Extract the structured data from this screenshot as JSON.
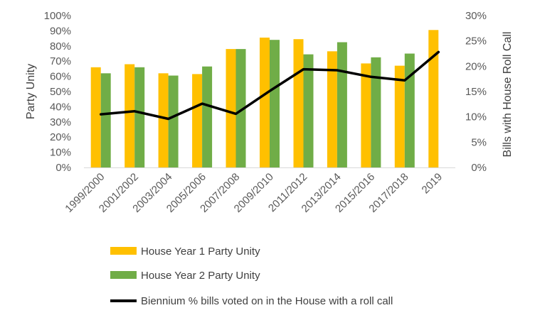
{
  "chart_data": {
    "type": "bar",
    "categories": [
      "1999/2000",
      "2001/2002",
      "2003/2004",
      "2005/2006",
      "2007/2008",
      "2009/2010",
      "2011/2012",
      "2013/2014",
      "2015/2016",
      "2017/2018",
      "2019"
    ],
    "series": [
      {
        "name": "House Year 1 Party Unity",
        "type": "bar",
        "axis": "left",
        "color": "#FFC000",
        "values": [
          66,
          68,
          62,
          61.5,
          78,
          85.5,
          84.5,
          76.5,
          68.5,
          67,
          90.5
        ]
      },
      {
        "name": "House Year 2 Party Unity",
        "type": "bar",
        "axis": "left",
        "color": "#70AD47",
        "values": [
          62,
          66,
          60.5,
          66.5,
          78,
          84,
          74.5,
          82.5,
          72.5,
          75,
          null
        ]
      },
      {
        "name": "Biennium % bills voted on in the House with a roll call",
        "type": "line",
        "axis": "right",
        "color": "#000000",
        "values": [
          10.5,
          11.1,
          9.6,
          12.6,
          10.6,
          15.1,
          19.4,
          19.2,
          17.9,
          17.2,
          22.8
        ]
      }
    ],
    "ylabel": "Party Unity",
    "y2label": "Bills with House Roll Call",
    "ylim": [
      0,
      100
    ],
    "y2lim": [
      0,
      30
    ],
    "yticks": [
      "0%",
      "10%",
      "20%",
      "30%",
      "40%",
      "50%",
      "60%",
      "70%",
      "80%",
      "90%",
      "100%"
    ],
    "y2ticks": [
      "0%",
      "5%",
      "10%",
      "15%",
      "20%",
      "25%",
      "30%"
    ],
    "legend_position": "bottom",
    "grid": false
  }
}
